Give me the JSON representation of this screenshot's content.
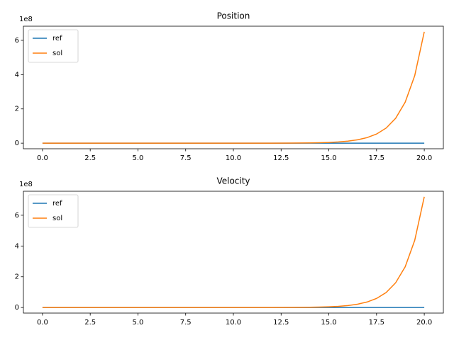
{
  "chart_data": [
    {
      "type": "line",
      "title": "Position",
      "y_offset_label": "1e8",
      "x": [
        0,
        1,
        2,
        3,
        4,
        5,
        6,
        7,
        8,
        9,
        10,
        11,
        12,
        13,
        14,
        14.5,
        15,
        15.5,
        16,
        16.5,
        17,
        17.5,
        18,
        18.5,
        19,
        19.5,
        20
      ],
      "series": [
        {
          "name": "ref",
          "color": "#1f77b4",
          "values": [
            0,
            0,
            0,
            0,
            0,
            0,
            0,
            0,
            0,
            0,
            0,
            0,
            0,
            0,
            0,
            0,
            0,
            0,
            0,
            0,
            0,
            0,
            0,
            0,
            0,
            0,
            0
          ]
        },
        {
          "name": "sol",
          "color": "#ff7f0e",
          "values": [
            0,
            0,
            0,
            0,
            0,
            0,
            0,
            0,
            0,
            0,
            0.0003,
            0.0008,
            0.0022,
            0.0059,
            0.016,
            0.027,
            0.044,
            0.072,
            0.119,
            0.196,
            0.324,
            0.533,
            0.88,
            1.45,
            2.39,
            3.94,
            6.5
          ]
        }
      ],
      "xlim": [
        -1,
        21
      ],
      "xticks": [
        {
          "value": 0,
          "label": "0.0"
        },
        {
          "value": 2.5,
          "label": "2.5"
        },
        {
          "value": 5,
          "label": "5.0"
        },
        {
          "value": 7.5,
          "label": "7.5"
        },
        {
          "value": 10,
          "label": "10.0"
        },
        {
          "value": 12.5,
          "label": "12.5"
        },
        {
          "value": 15,
          "label": "15.0"
        },
        {
          "value": 17.5,
          "label": "17.5"
        },
        {
          "value": 20,
          "label": "20.0"
        }
      ],
      "ylim": [
        -0.325,
        6.825
      ],
      "yticks": [
        0,
        2,
        4,
        6
      ],
      "legend": "upper-left",
      "grid": false
    },
    {
      "type": "line",
      "title": "Velocity",
      "y_offset_label": "1e8",
      "x": [
        0,
        1,
        2,
        3,
        4,
        5,
        6,
        7,
        8,
        9,
        10,
        11,
        12,
        13,
        14,
        14.5,
        15,
        15.5,
        16,
        16.5,
        17,
        17.5,
        18,
        18.5,
        19,
        19.5,
        20
      ],
      "series": [
        {
          "name": "ref",
          "color": "#1f77b4",
          "values": [
            0,
            0,
            0,
            0,
            0,
            0,
            0,
            0,
            0,
            0,
            0,
            0,
            0,
            0,
            0,
            0,
            0,
            0,
            0,
            0,
            0,
            0,
            0,
            0,
            0,
            0,
            0
          ]
        },
        {
          "name": "sol",
          "color": "#ff7f0e",
          "values": [
            0,
            0,
            0,
            0,
            0,
            0,
            0,
            0,
            0,
            0,
            0.0003,
            0.0009,
            0.0024,
            0.0066,
            0.018,
            0.029,
            0.049,
            0.08,
            0.132,
            0.217,
            0.359,
            0.591,
            0.974,
            1.61,
            2.65,
            4.37,
            7.2
          ]
        }
      ],
      "xlim": [
        -1,
        21
      ],
      "xticks": [
        {
          "value": 0,
          "label": "0.0"
        },
        {
          "value": 2.5,
          "label": "2.5"
        },
        {
          "value": 5,
          "label": "5.0"
        },
        {
          "value": 7.5,
          "label": "7.5"
        },
        {
          "value": 10,
          "label": "10.0"
        },
        {
          "value": 12.5,
          "label": "12.5"
        },
        {
          "value": 15,
          "label": "15.0"
        },
        {
          "value": 17.5,
          "label": "17.5"
        },
        {
          "value": 20,
          "label": "20.0"
        }
      ],
      "ylim": [
        -0.36,
        7.56
      ],
      "yticks": [
        0,
        2,
        4,
        6
      ],
      "legend": "upper-left",
      "grid": false
    }
  ]
}
